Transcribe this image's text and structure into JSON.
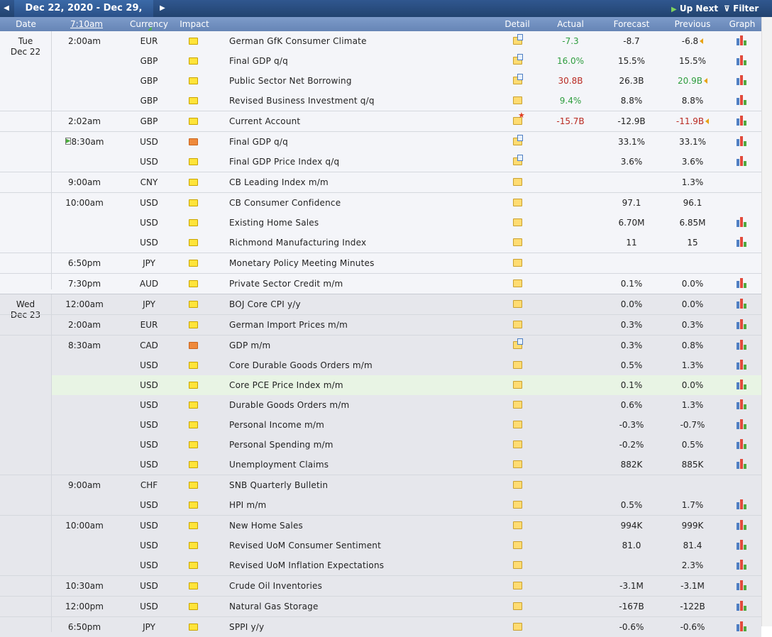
{
  "toolbar": {
    "prev_label": "◀",
    "date_range": "Dec 22, 2020 - Dec 29, 2020",
    "next_label": "▶",
    "up_next_label": "Up Next",
    "filter_label": "Filter"
  },
  "headers": {
    "date": "Date",
    "time": "7:10am",
    "currency": "Currency",
    "impact": "Impact",
    "detail": "Detail",
    "actual": "Actual",
    "forecast": "Forecast",
    "previous": "Previous",
    "graph": "Graph"
  },
  "colors": {
    "accent_blue": "#2a5088",
    "header_blue": "#7290c0",
    "impact_yellow": "#ffe43a",
    "impact_orange": "#ef8a3c",
    "better": "#2e9d3e",
    "worse": "#b92a22",
    "highlight_row": "#e8f4e4"
  },
  "days": [
    {
      "day": "Tue",
      "date": "Dec 22",
      "rows": [
        {
          "time": "2:00am",
          "currency": "EUR",
          "impact": "yellow",
          "event": "German GfK Consumer Climate",
          "detail": "page",
          "actual": "-7.3",
          "actual_color": "green",
          "forecast": "-8.7",
          "previous": "-6.8",
          "previous_color": "",
          "revised": true,
          "graph": true,
          "group_start": true
        },
        {
          "time": "",
          "currency": "GBP",
          "impact": "yellow",
          "event": "Final GDP q/q",
          "detail": "page",
          "actual": "16.0%",
          "actual_color": "green",
          "forecast": "15.5%",
          "previous": "15.5%",
          "previous_color": "",
          "revised": false,
          "graph": true
        },
        {
          "time": "",
          "currency": "GBP",
          "impact": "yellow",
          "event": "Public Sector Net Borrowing",
          "detail": "page",
          "actual": "30.8B",
          "actual_color": "red",
          "forecast": "26.3B",
          "previous": "20.9B",
          "previous_color": "green",
          "revised": true,
          "graph": true
        },
        {
          "time": "",
          "currency": "GBP",
          "impact": "yellow",
          "event": "Revised Business Investment q/q",
          "detail": "folder",
          "actual": "9.4%",
          "actual_color": "green",
          "forecast": "8.8%",
          "previous": "8.8%",
          "previous_color": "",
          "revised": false,
          "graph": true
        },
        {
          "time": "2:02am",
          "currency": "GBP",
          "impact": "yellow",
          "event": "Current Account",
          "detail": "star",
          "actual": "-15.7B",
          "actual_color": "red",
          "forecast": "-12.9B",
          "previous": "-11.9B",
          "previous_color": "red",
          "revised": true,
          "graph": true,
          "group_start": true
        },
        {
          "time": "8:30am",
          "currency": "USD",
          "impact": "orange",
          "event": "Final GDP q/q",
          "detail": "page",
          "actual": "",
          "actual_color": "",
          "forecast": "33.1%",
          "previous": "33.1%",
          "previous_color": "",
          "revised": false,
          "graph": true,
          "group_start": true,
          "upnext": true
        },
        {
          "time": "",
          "currency": "USD",
          "impact": "yellow",
          "event": "Final GDP Price Index q/q",
          "detail": "page",
          "actual": "",
          "actual_color": "",
          "forecast": "3.6%",
          "previous": "3.6%",
          "previous_color": "",
          "revised": false,
          "graph": true
        },
        {
          "time": "9:00am",
          "currency": "CNY",
          "impact": "yellow",
          "event": "CB Leading Index m/m",
          "detail": "folder",
          "actual": "",
          "actual_color": "",
          "forecast": "",
          "previous": "1.3%",
          "previous_color": "",
          "revised": false,
          "graph": false,
          "group_start": true
        },
        {
          "time": "10:00am",
          "currency": "USD",
          "impact": "yellow",
          "event": "CB Consumer Confidence",
          "detail": "folder",
          "actual": "",
          "actual_color": "",
          "forecast": "97.1",
          "previous": "96.1",
          "previous_color": "",
          "revised": false,
          "graph": false,
          "group_start": true
        },
        {
          "time": "",
          "currency": "USD",
          "impact": "yellow",
          "event": "Existing Home Sales",
          "detail": "folder",
          "actual": "",
          "actual_color": "",
          "forecast": "6.70M",
          "previous": "6.85M",
          "previous_color": "",
          "revised": false,
          "graph": true
        },
        {
          "time": "",
          "currency": "USD",
          "impact": "yellow",
          "event": "Richmond Manufacturing Index",
          "detail": "folder",
          "actual": "",
          "actual_color": "",
          "forecast": "11",
          "previous": "15",
          "previous_color": "",
          "revised": false,
          "graph": true
        },
        {
          "time": "6:50pm",
          "currency": "JPY",
          "impact": "yellow",
          "event": "Monetary Policy Meeting Minutes",
          "detail": "folder",
          "actual": "",
          "actual_color": "",
          "forecast": "",
          "previous": "",
          "previous_color": "",
          "revised": false,
          "graph": false,
          "group_start": true
        },
        {
          "time": "7:30pm",
          "currency": "AUD",
          "impact": "yellow",
          "event": "Private Sector Credit m/m",
          "detail": "folder",
          "actual": "",
          "actual_color": "",
          "forecast": "0.1%",
          "previous": "0.0%",
          "previous_color": "",
          "revised": false,
          "graph": true,
          "group_start": true
        }
      ]
    },
    {
      "day": "Wed",
      "date": "Dec 23",
      "rows": [
        {
          "time": "12:00am",
          "currency": "JPY",
          "impact": "yellow",
          "event": "BOJ Core CPI y/y",
          "detail": "folder",
          "actual": "",
          "actual_color": "",
          "forecast": "0.0%",
          "previous": "0.0%",
          "previous_color": "",
          "revised": false,
          "graph": true,
          "group_start": true
        },
        {
          "time": "2:00am",
          "currency": "EUR",
          "impact": "yellow",
          "event": "German Import Prices m/m",
          "detail": "folder",
          "actual": "",
          "actual_color": "",
          "forecast": "0.3%",
          "previous": "0.3%",
          "previous_color": "",
          "revised": false,
          "graph": true,
          "group_start": true
        },
        {
          "time": "8:30am",
          "currency": "CAD",
          "impact": "orange",
          "event": "GDP m/m",
          "detail": "page",
          "actual": "",
          "actual_color": "",
          "forecast": "0.3%",
          "previous": "0.8%",
          "previous_color": "",
          "revised": false,
          "graph": true,
          "group_start": true
        },
        {
          "time": "",
          "currency": "USD",
          "impact": "yellow",
          "event": "Core Durable Goods Orders m/m",
          "detail": "folder",
          "actual": "",
          "actual_color": "",
          "forecast": "0.5%",
          "previous": "1.3%",
          "previous_color": "",
          "revised": false,
          "graph": true
        },
        {
          "time": "",
          "currency": "USD",
          "impact": "yellow",
          "event": "Core PCE Price Index m/m",
          "detail": "folder",
          "actual": "",
          "actual_color": "",
          "forecast": "0.1%",
          "previous": "0.0%",
          "previous_color": "",
          "revised": false,
          "graph": true,
          "highlight": true
        },
        {
          "time": "",
          "currency": "USD",
          "impact": "yellow",
          "event": "Durable Goods Orders m/m",
          "detail": "folder",
          "actual": "",
          "actual_color": "",
          "forecast": "0.6%",
          "previous": "1.3%",
          "previous_color": "",
          "revised": false,
          "graph": true
        },
        {
          "time": "",
          "currency": "USD",
          "impact": "yellow",
          "event": "Personal Income m/m",
          "detail": "folder",
          "actual": "",
          "actual_color": "",
          "forecast": "-0.3%",
          "previous": "-0.7%",
          "previous_color": "",
          "revised": false,
          "graph": true
        },
        {
          "time": "",
          "currency": "USD",
          "impact": "yellow",
          "event": "Personal Spending m/m",
          "detail": "folder",
          "actual": "",
          "actual_color": "",
          "forecast": "-0.2%",
          "previous": "0.5%",
          "previous_color": "",
          "revised": false,
          "graph": true
        },
        {
          "time": "",
          "currency": "USD",
          "impact": "yellow",
          "event": "Unemployment Claims",
          "detail": "folder",
          "actual": "",
          "actual_color": "",
          "forecast": "882K",
          "previous": "885K",
          "previous_color": "",
          "revised": false,
          "graph": true
        },
        {
          "time": "9:00am",
          "currency": "CHF",
          "impact": "yellow",
          "event": "SNB Quarterly Bulletin",
          "detail": "folder",
          "actual": "",
          "actual_color": "",
          "forecast": "",
          "previous": "",
          "previous_color": "",
          "revised": false,
          "graph": false,
          "group_start": true
        },
        {
          "time": "",
          "currency": "USD",
          "impact": "yellow",
          "event": "HPI m/m",
          "detail": "folder",
          "actual": "",
          "actual_color": "",
          "forecast": "0.5%",
          "previous": "1.7%",
          "previous_color": "",
          "revised": false,
          "graph": true
        },
        {
          "time": "10:00am",
          "currency": "USD",
          "impact": "yellow",
          "event": "New Home Sales",
          "detail": "folder",
          "actual": "",
          "actual_color": "",
          "forecast": "994K",
          "previous": "999K",
          "previous_color": "",
          "revised": false,
          "graph": true,
          "group_start": true
        },
        {
          "time": "",
          "currency": "USD",
          "impact": "yellow",
          "event": "Revised UoM Consumer Sentiment",
          "detail": "folder",
          "actual": "",
          "actual_color": "",
          "forecast": "81.0",
          "previous": "81.4",
          "previous_color": "",
          "revised": false,
          "graph": true
        },
        {
          "time": "",
          "currency": "USD",
          "impact": "yellow",
          "event": "Revised UoM Inflation Expectations",
          "detail": "folder",
          "actual": "",
          "actual_color": "",
          "forecast": "",
          "previous": "2.3%",
          "previous_color": "",
          "revised": false,
          "graph": true
        },
        {
          "time": "10:30am",
          "currency": "USD",
          "impact": "yellow",
          "event": "Crude Oil Inventories",
          "detail": "folder",
          "actual": "",
          "actual_color": "",
          "forecast": "-3.1M",
          "previous": "-3.1M",
          "previous_color": "",
          "revised": false,
          "graph": true,
          "group_start": true
        },
        {
          "time": "12:00pm",
          "currency": "USD",
          "impact": "yellow",
          "event": "Natural Gas Storage",
          "detail": "folder",
          "actual": "",
          "actual_color": "",
          "forecast": "-167B",
          "previous": "-122B",
          "previous_color": "",
          "revised": false,
          "graph": true,
          "group_start": true
        },
        {
          "time": "6:50pm",
          "currency": "JPY",
          "impact": "yellow",
          "event": "SPPI y/y",
          "detail": "folder",
          "actual": "",
          "actual_color": "",
          "forecast": "-0.6%",
          "previous": "-0.6%",
          "previous_color": "",
          "revised": false,
          "graph": true,
          "group_start": true
        }
      ]
    }
  ]
}
